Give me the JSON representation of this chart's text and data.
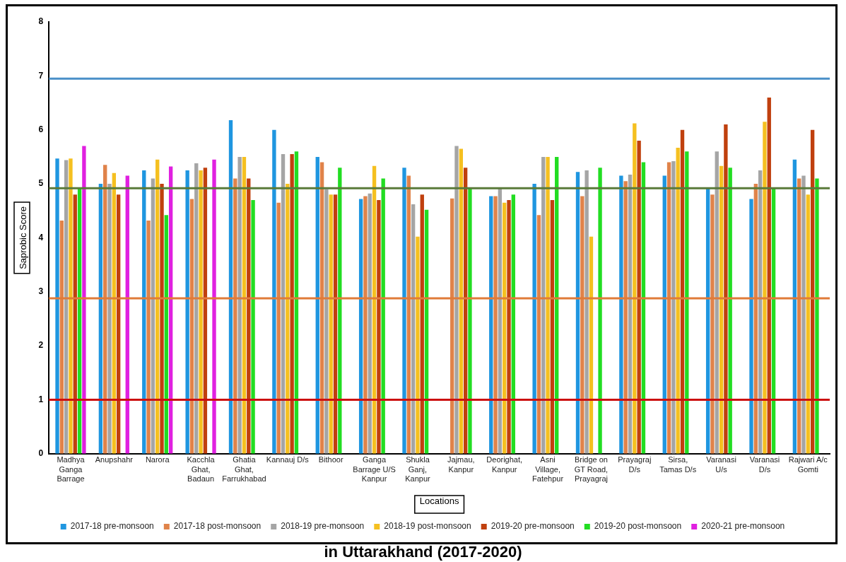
{
  "chart_data": {
    "type": "bar",
    "title": "in Uttarakhand (2017-2020)",
    "xlabel": "Locations",
    "ylabel": "Saprobic Score",
    "categories": [
      "Madhya Ganga Barrage",
      "Anupshahr",
      "Narora",
      "Kacchla Ghat, Badaun",
      "Ghatia Ghat, Farrukhabad",
      "Kannauj D/s",
      "Bithoor",
      "Ganga Barrage U/S Kanpur",
      "Shukla Ganj, Kanpur",
      "Jajmau, Kanpur",
      "Deorighat, Kanpur",
      "Asni Village, Fatehpur",
      "Bridge on GT Road, Prayagraj",
      "Prayagraj D/s",
      "Sirsa, Tamas D/s",
      "Varanasi U/s",
      "Varanasi D/s",
      "Rajwari A/c Gomti"
    ],
    "series": [
      {
        "name": "2017-18 pre-monsoon",
        "color": "#1f96e0",
        "values": [
          5.47,
          5.0,
          5.25,
          5.25,
          6.18,
          6.0,
          5.5,
          4.72,
          5.3,
          null,
          4.77,
          5.0,
          5.22,
          5.15,
          5.15,
          4.92,
          4.72,
          5.45
        ]
      },
      {
        "name": "2017-18 post-monsoon",
        "color": "#e0834a",
        "values": [
          4.32,
          5.35,
          4.32,
          4.72,
          5.1,
          4.65,
          5.4,
          4.77,
          5.15,
          4.73,
          4.77,
          4.42,
          4.77,
          5.05,
          5.4,
          4.8,
          5.0,
          5.1
        ]
      },
      {
        "name": "2018-19 pre-monsoon",
        "color": "#a5a5a5",
        "values": [
          5.44,
          5.0,
          5.1,
          5.38,
          5.5,
          5.55,
          4.9,
          4.82,
          4.62,
          5.7,
          4.92,
          5.5,
          5.25,
          5.17,
          5.42,
          5.6,
          5.25,
          5.15
        ]
      },
      {
        "name": "2018-19 post-monsoon",
        "color": "#f5c020",
        "values": [
          5.47,
          5.2,
          5.45,
          5.25,
          5.5,
          5.0,
          4.8,
          5.33,
          4.02,
          5.65,
          4.65,
          5.5,
          4.02,
          6.12,
          5.67,
          5.33,
          6.15,
          4.8
        ]
      },
      {
        "name": "2019-20 pre-monsoon",
        "color": "#c0400e",
        "values": [
          4.8,
          4.8,
          5.0,
          5.3,
          5.1,
          5.55,
          4.8,
          4.7,
          4.8,
          5.3,
          4.7,
          4.7,
          null,
          5.8,
          6.0,
          6.1,
          6.6,
          6.0
        ]
      },
      {
        "name": "2019-20 post-monsoon",
        "color": "#22dd22",
        "values": [
          4.92,
          null,
          4.42,
          null,
          4.7,
          5.6,
          5.3,
          5.1,
          4.52,
          4.92,
          4.8,
          5.5,
          5.3,
          5.4,
          5.6,
          5.3,
          4.92,
          5.1
        ]
      },
      {
        "name": "2020-21 pre-monsoon",
        "color": "#e020e0",
        "values": [
          5.7,
          5.15,
          5.32,
          5.45,
          null,
          null,
          null,
          null,
          null,
          null,
          null,
          null,
          null,
          null,
          null,
          null,
          null,
          null
        ]
      }
    ],
    "ylim": [
      0,
      8
    ],
    "yticks": [
      0,
      1,
      2,
      3,
      4,
      5,
      6,
      7,
      8
    ],
    "grid": false,
    "legend": "bottom",
    "ref_lines": [
      {
        "axis": "y",
        "value": 6.95,
        "color": "#4a90c8"
      },
      {
        "axis": "y",
        "value": 4.92,
        "color": "#5a7a3a"
      },
      {
        "axis": "y",
        "value": 2.88,
        "color": "#e07b39"
      },
      {
        "axis": "y",
        "value": 1.0,
        "color": "#cc1010"
      }
    ]
  }
}
